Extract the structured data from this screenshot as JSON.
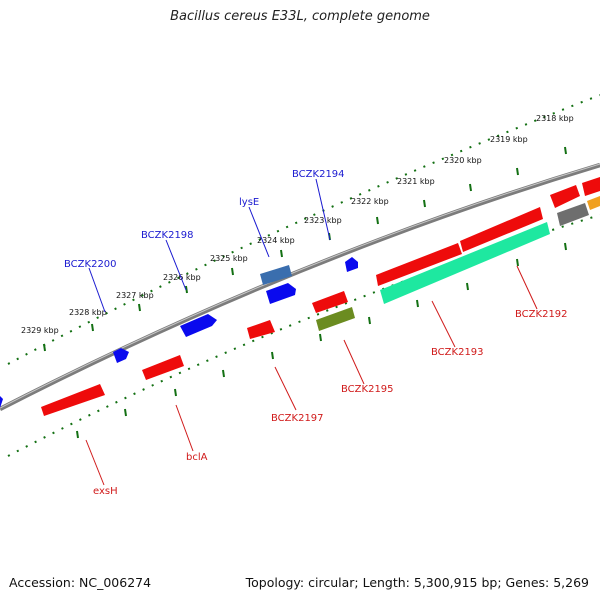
{
  "title": "Bacillus cereus E33L, complete genome",
  "footer": {
    "accession": "Accession: NC_006274",
    "summary": "Topology: circular; Length: 5,300,915 bp; Genes: 5,269"
  },
  "colors": {
    "backbone": "#858585",
    "forward_gene": "#0a0aee",
    "reverse_gene": "#ee0b0b",
    "tick": "#137013",
    "label_forward": "#1a1ad0",
    "label_reverse": "#d01a1a"
  },
  "scale": {
    "ticks": [
      "2318 kbp",
      "2319 kbp",
      "2320 kbp",
      "2321 kbp",
      "2322 kbp",
      "2323 kbp",
      "2324 kbp",
      "2325 kbp",
      "2326 kbp",
      "2327 kbp",
      "2328 kbp",
      "2329 kbp"
    ]
  },
  "gene_labels": {
    "forward": [
      "BCZK2194",
      "lysE",
      "BCZK2198",
      "BCZK2200"
    ],
    "reverse": [
      "BCZK2192",
      "BCZK2193",
      "BCZK2195",
      "BCZK2197",
      "bclA",
      "exsH"
    ]
  }
}
